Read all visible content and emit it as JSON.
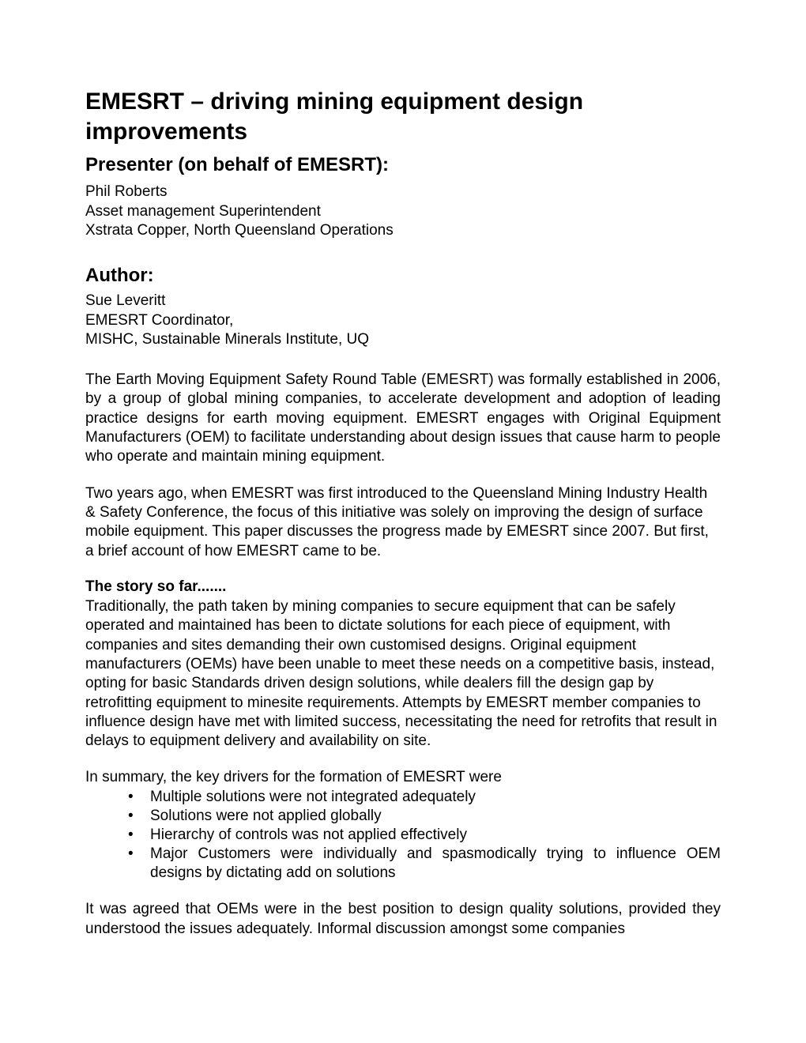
{
  "title": "EMESRT – driving mining equipment design improvements",
  "presenter_heading": "Presenter (on behalf of EMESRT):",
  "presenter": {
    "name": "Phil Roberts",
    "role": "Asset management Superintendent",
    "org": "Xstrata Copper, North Queensland Operations"
  },
  "author_heading": "Author:",
  "author": {
    "name": "Sue Leveritt",
    "role": "EMESRT Coordinator,",
    "org": "MISHC, Sustainable Minerals Institute, UQ"
  },
  "para1": "The Earth Moving Equipment Safety Round Table (EMESRT) was formally established in 2006, by a group of global mining companies, to accelerate development and adoption of leading practice designs for earth moving equipment. EMESRT engages with Original Equipment Manufacturers (OEM) to facilitate understanding about design issues that cause harm to people who operate and maintain mining equipment.",
  "para2": "Two years ago, when EMESRT was first introduced to the Queensland Mining Industry Health & Safety Conference, the focus of this initiative was solely on improving the design of surface mobile equipment. This paper discusses the progress made by EMESRT since 2007. But first, a brief account of how EMESRT came to be.",
  "section1_heading": "The story so far.......",
  "para3": "Traditionally, the path taken by mining companies to secure equipment that can be safely operated and maintained has been to dictate solutions for each piece of equipment, with companies and sites demanding their own customised designs. Original equipment manufacturers (OEMs) have been unable to meet these needs on a competitive basis, instead, opting for basic Standards driven design solutions, while dealers fill the design gap by retrofitting equipment to minesite requirements. Attempts by EMESRT member companies to influence design have met with limited success, necessitating the need for retrofits that result in delays to equipment delivery and availability on site.",
  "para4": "In summary, the key drivers for the formation of EMESRT were",
  "bullets": [
    "Multiple solutions were not integrated adequately",
    "Solutions were not applied globally",
    "Hierarchy of controls was not applied effectively",
    "Major Customers were individually and spasmodically trying to influence OEM designs by dictating add on solutions"
  ],
  "para5": "It was agreed that OEMs were in the best position to design quality solutions, provided they understood the issues adequately. Informal discussion amongst some companies",
  "colors": {
    "background": "#ffffff",
    "text": "#000000"
  },
  "typography": {
    "title_fontsize": 30,
    "h2_fontsize": 24,
    "body_fontsize": 19
  }
}
